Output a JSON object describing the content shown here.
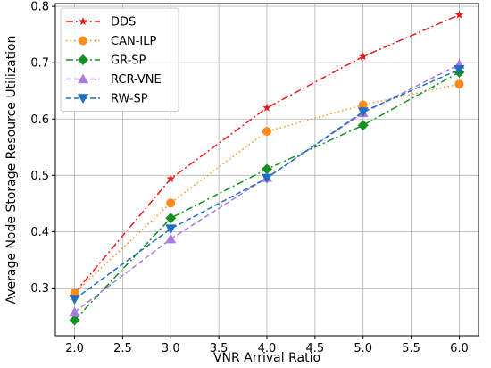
{
  "chart_data": {
    "type": "line",
    "x": [
      2.0,
      3.0,
      4.0,
      5.0,
      6.0
    ],
    "xlabel": "VNR Arrival Ratio",
    "ylabel": "Average Node Storage Resource Utilization",
    "xlim": [
      1.8,
      6.2
    ],
    "ylim": [
      0.215,
      0.805
    ],
    "xticks": [
      "2.0",
      "2.5",
      "3.0",
      "3.5",
      "4.0",
      "4.5",
      "5.0",
      "5.5",
      "6.0"
    ],
    "yticks": [
      "0.3",
      "0.4",
      "0.5",
      "0.6",
      "0.7",
      "0.8"
    ],
    "grid": true,
    "legend_position": "top-left",
    "series": [
      {
        "name": "DDS",
        "values": [
          0.291,
          0.494,
          0.62,
          0.711,
          0.785
        ],
        "color": "#e8191c",
        "dash": "dashdot",
        "marker": "star"
      },
      {
        "name": "CAN-ILP",
        "values": [
          0.291,
          0.451,
          0.578,
          0.625,
          0.662
        ],
        "color": "#ff8c1a",
        "dash": "dotted",
        "marker": "circle"
      },
      {
        "name": "GR-SP",
        "values": [
          0.243,
          0.424,
          0.511,
          0.589,
          0.683
        ],
        "color": "#14901e",
        "dash": "dashdot",
        "marker": "diamond"
      },
      {
        "name": "RCR-VNE",
        "values": [
          0.257,
          0.387,
          0.496,
          0.611,
          0.697
        ],
        "color": "#a97be0",
        "dash": "dashed",
        "marker": "triangle-up"
      },
      {
        "name": "RW-SP",
        "values": [
          0.28,
          0.405,
          0.495,
          0.613,
          0.688
        ],
        "color": "#1f6fc0",
        "dash": "dashed",
        "marker": "triangle-down"
      }
    ]
  }
}
